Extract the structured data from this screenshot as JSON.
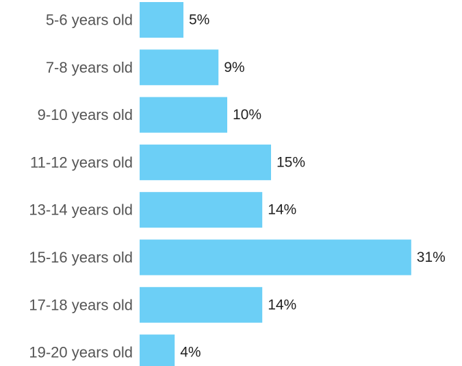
{
  "chart_data": {
    "type": "bar",
    "orientation": "horizontal",
    "categories": [
      "5-6 years old",
      "7-8 years old",
      "9-10 years old",
      "11-12 years old",
      "13-14 years old",
      "15-16 years old",
      "17-18 years old",
      "19-20 years old"
    ],
    "values": [
      5,
      9,
      10,
      15,
      14,
      31,
      14,
      4
    ],
    "value_labels": [
      "5%",
      "9%",
      "10%",
      "15%",
      "14%",
      "31%",
      "14%",
      "4%"
    ],
    "title": "",
    "xlabel": "",
    "ylabel": "",
    "unit": "%",
    "grid": false,
    "legend": "none",
    "bar_color": "#6ccff6"
  }
}
